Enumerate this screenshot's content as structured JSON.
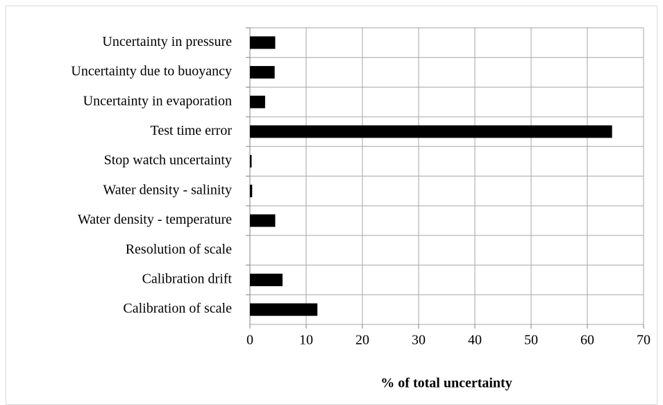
{
  "chart_data": {
    "type": "barh",
    "xlabel": "% of total uncertainty",
    "categories": [
      "Uncertainty in pressure",
      "Uncertainty due to buoyancy",
      "Uncertainty in evaporation",
      "Test time error",
      "Stop watch uncertainty",
      "Water density - salinity",
      "Water density - temperature",
      "Resolution of scale",
      "Calibration drift",
      "Calibration of scale"
    ],
    "values": [
      4.5,
      4.4,
      2.7,
      64.4,
      0.3,
      0.4,
      4.5,
      0,
      5.8,
      12
    ],
    "color": "#000000",
    "xlim": [
      0,
      70
    ],
    "xticks": [
      0,
      10,
      20,
      30,
      40,
      50,
      60,
      70
    ],
    "grid": true
  }
}
